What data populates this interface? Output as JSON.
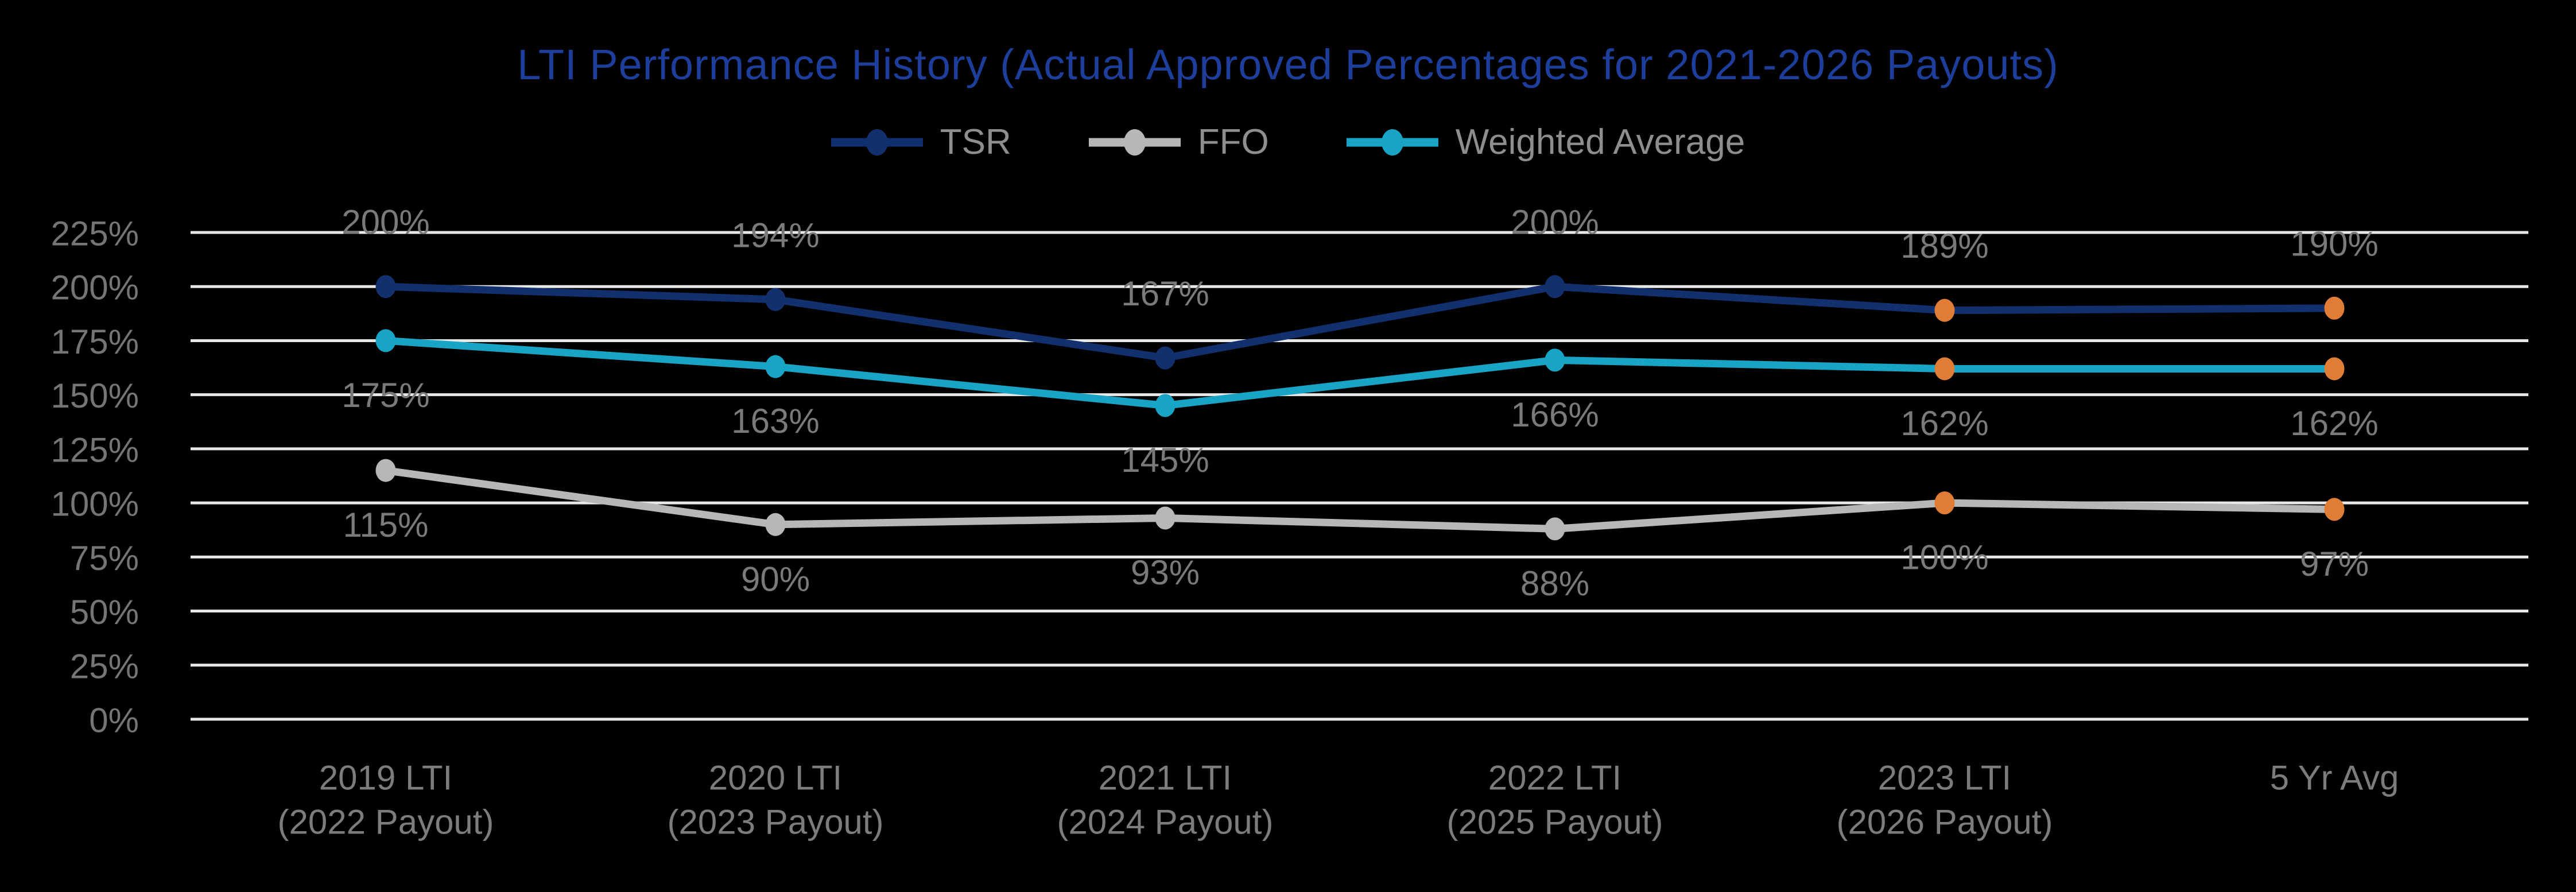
{
  "title": "LTI Performance History (Actual Approved Percentages for 2021-2026 Payouts)",
  "colors": {
    "background": "#000000",
    "title_text": "#1D3E9A",
    "axis_label_text": "#757575",
    "data_label_text": "#7A7A7A",
    "category_label_text": "#7C7C7C",
    "legend_text": "#8E8E8E",
    "gridline": "#E7E7E5",
    "tsr": "#13306E",
    "ffo": "#B7B7B7",
    "weighted_average": "#17A4C5",
    "highlight_marker": "#DF7D36"
  },
  "legend": {
    "items": [
      {
        "id": "tsr",
        "color_key": "tsr",
        "label": "TSR"
      },
      {
        "id": "ffo",
        "color_key": "ffo",
        "label": "FFO"
      },
      {
        "id": "weighted-average",
        "color_key": "weighted_average",
        "label": "Weighted Average"
      }
    ]
  },
  "chart_data": {
    "type": "line",
    "title": "LTI Performance History (Actual Approved Percentages for 2021-2026 Payouts)",
    "categories": [
      "2019 LTI\n(2022 Payout)",
      "2020 LTI\n(2023 Payout)",
      "2021 LTI\n(2024 Payout)",
      "2022 LTI\n(2025 Payout)",
      "2023 LTI\n(2026 Payout)",
      "5 Yr Avg"
    ],
    "series": [
      {
        "name": "TSR",
        "color_key": "tsr",
        "values": [
          200,
          194,
          167,
          200,
          189,
          190
        ],
        "data_labels": [
          "200%",
          "194%",
          "167%",
          "200%",
          "189%",
          "190%"
        ],
        "label_position": "above"
      },
      {
        "name": "FFO",
        "color_key": "ffo",
        "values": [
          115,
          90,
          93,
          88,
          100,
          97
        ],
        "data_labels": [
          "115%",
          "90%",
          "93%",
          "88%",
          "100%",
          "97%"
        ],
        "label_position": "below"
      },
      {
        "name": "Weighted Average",
        "color_key": "weighted_average",
        "values": [
          175,
          163,
          145,
          166,
          162,
          162
        ],
        "data_labels": [
          "175%",
          "163%",
          "145%",
          "166%",
          "162%",
          "162%"
        ],
        "label_position": "below"
      }
    ],
    "highlight_point_indices": [
      4,
      5
    ],
    "ylim": [
      0,
      225
    ],
    "ytick_values": [
      0,
      25,
      50,
      75,
      100,
      125,
      150,
      175,
      200,
      225
    ],
    "ytick_labels": [
      "0%",
      "25%",
      "50%",
      "75%",
      "100%",
      "125%",
      "150%",
      "175%",
      "200%",
      "225%"
    ],
    "grid": true,
    "legend_position": "top",
    "marker_style": "circle"
  }
}
